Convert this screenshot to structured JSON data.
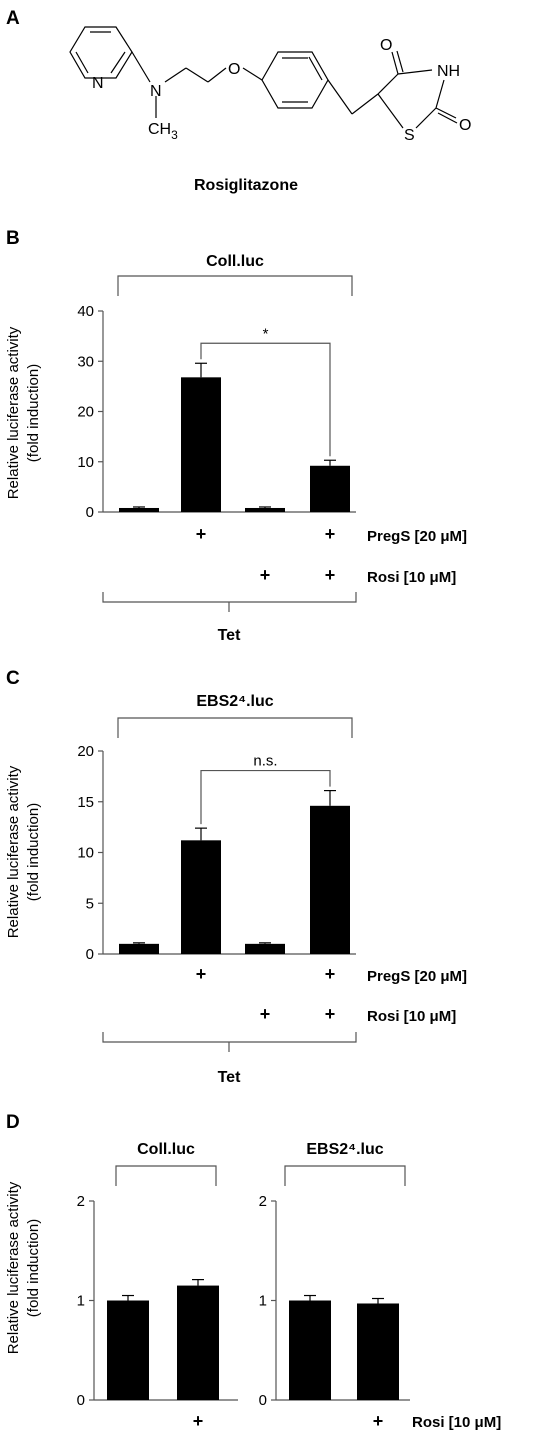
{
  "panels": {
    "a": "A",
    "b": "B",
    "c": "C",
    "d": "D"
  },
  "molecule": {
    "name": "Rosiglitazone",
    "atoms": {
      "n_ring": "N",
      "n_amine": "N",
      "o_ether": "O",
      "o_top": "O",
      "nh": "NH",
      "o_right": "O",
      "s": "S",
      "methyl_c": "CH",
      "methyl_sub": "3"
    }
  },
  "conditions": {
    "pregs": "PregS [20 μM]",
    "rosi": "Rosi [10 μM]",
    "tet": "Tet",
    "plus": "+"
  },
  "ylabel_line1": "Relative luciferase activity",
  "ylabel_line2": "(fold induction)",
  "chart_data": [
    {
      "id": "B",
      "type": "bar",
      "title": "Coll.luc",
      "ylabel": "Relative luciferase activity (fold induction)",
      "ylim": [
        0,
        40
      ],
      "yticks": [
        "0",
        "10",
        "20",
        "30",
        "40"
      ],
      "conditions": {
        "pregs": [
          false,
          true,
          false,
          true
        ],
        "rosi": [
          false,
          false,
          true,
          true
        ]
      },
      "values": [
        0.8,
        26.8,
        0.8,
        9.2
      ],
      "errors": [
        0.2,
        2.8,
        0.2,
        1.1
      ],
      "significance": "*",
      "bracket_label": "Tet"
    },
    {
      "id": "C",
      "type": "bar",
      "title": "EBS2⁴.luc",
      "ylabel": "Relative luciferase activity (fold induction)",
      "ylim": [
        0,
        20
      ],
      "yticks": [
        "0",
        "5",
        "10",
        "15",
        "20"
      ],
      "conditions": {
        "pregs": [
          false,
          true,
          false,
          true
        ],
        "rosi": [
          false,
          false,
          true,
          true
        ]
      },
      "values": [
        1.0,
        11.2,
        1.0,
        14.6
      ],
      "errors": [
        0.1,
        1.2,
        0.1,
        1.5
      ],
      "significance": "n.s.",
      "bracket_label": "Tet"
    },
    {
      "id": "D1",
      "type": "bar",
      "title": "Coll.luc",
      "ylabel": "Relative luciferase activity (fold induction)",
      "ylim": [
        0,
        2
      ],
      "yticks": [
        "0",
        "1",
        "2"
      ],
      "conditions": {
        "rosi": [
          false,
          true
        ]
      },
      "values": [
        1.0,
        1.15
      ],
      "errors": [
        0.05,
        0.06
      ]
    },
    {
      "id": "D2",
      "type": "bar",
      "title": "EBS2⁴.luc",
      "ylim": [
        0,
        2
      ],
      "yticks": [
        "0",
        "1",
        "2"
      ],
      "conditions": {
        "rosi": [
          false,
          true
        ]
      },
      "values": [
        1.0,
        0.97
      ],
      "errors": [
        0.05,
        0.05
      ]
    }
  ]
}
